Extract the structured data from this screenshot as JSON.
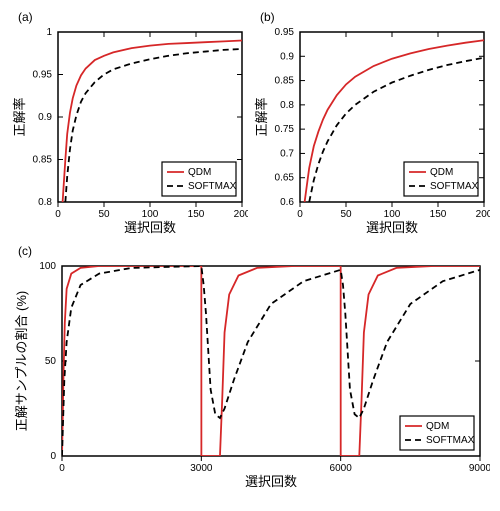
{
  "panel_a": {
    "label": "(a)",
    "type": "line",
    "xlim": [
      0,
      200
    ],
    "xticks": [
      0,
      50,
      100,
      150,
      200
    ],
    "ylim": [
      0.8,
      1.0
    ],
    "yticks": [
      0.8,
      0.85,
      0.9,
      0.95,
      1.0
    ],
    "yticklabels": [
      "0.8",
      "0.85",
      "0.9",
      "0.95",
      "1"
    ],
    "xlabel": "選択回数",
    "ylabel": "正解率",
    "label_fontsize": 13,
    "tick_fontsize": 10,
    "series": [
      {
        "name": "QDM",
        "color": "#d62728",
        "dash": "solid",
        "x": [
          5,
          8,
          10,
          13,
          16,
          20,
          25,
          30,
          40,
          50,
          60,
          80,
          100,
          120,
          140,
          160,
          180,
          200
        ],
        "y": [
          0.8,
          0.85,
          0.88,
          0.905,
          0.922,
          0.937,
          0.949,
          0.957,
          0.967,
          0.972,
          0.976,
          0.981,
          0.984,
          0.986,
          0.987,
          0.988,
          0.989,
          0.99
        ]
      },
      {
        "name": "SOFTMAX",
        "color": "#000000",
        "dash": "dashed",
        "x": [
          8,
          10,
          13,
          16,
          20,
          25,
          30,
          40,
          50,
          60,
          80,
          100,
          120,
          140,
          160,
          180,
          200
        ],
        "y": [
          0.8,
          0.83,
          0.862,
          0.884,
          0.902,
          0.918,
          0.928,
          0.941,
          0.95,
          0.956,
          0.963,
          0.968,
          0.972,
          0.975,
          0.977,
          0.979,
          0.98
        ]
      }
    ],
    "legend": {
      "items": [
        "QDM",
        "SOFTMAX"
      ],
      "pos": "lower-right"
    }
  },
  "panel_b": {
    "label": "(b)",
    "type": "line",
    "xlim": [
      0,
      200
    ],
    "xticks": [
      0,
      50,
      100,
      150,
      200
    ],
    "ylim": [
      0.6,
      0.95
    ],
    "yticks": [
      0.6,
      0.65,
      0.7,
      0.75,
      0.8,
      0.85,
      0.9,
      0.95
    ],
    "yticklabels": [
      "0.6",
      "0.65",
      "0.7",
      "0.75",
      "0.8",
      "0.85",
      "0.9",
      "0.95"
    ],
    "xlabel": "選択回数",
    "ylabel": "正解率",
    "label_fontsize": 13,
    "tick_fontsize": 10,
    "series": [
      {
        "name": "QDM",
        "color": "#d62728",
        "dash": "solid",
        "x": [
          5,
          10,
          15,
          20,
          25,
          30,
          40,
          50,
          60,
          80,
          100,
          120,
          140,
          160,
          180,
          200
        ],
        "y": [
          0.6,
          0.67,
          0.715,
          0.745,
          0.77,
          0.79,
          0.82,
          0.842,
          0.858,
          0.88,
          0.895,
          0.906,
          0.915,
          0.922,
          0.928,
          0.933
        ]
      },
      {
        "name": "SOFTMAX",
        "color": "#000000",
        "dash": "dashed",
        "x": [
          10,
          15,
          20,
          25,
          30,
          40,
          50,
          60,
          80,
          100,
          120,
          140,
          160,
          180,
          200
        ],
        "y": [
          0.6,
          0.645,
          0.678,
          0.704,
          0.725,
          0.758,
          0.782,
          0.8,
          0.827,
          0.846,
          0.86,
          0.872,
          0.882,
          0.89,
          0.897
        ]
      }
    ],
    "legend": {
      "items": [
        "QDM",
        "SOFTMAX"
      ],
      "pos": "lower-right"
    }
  },
  "panel_c": {
    "label": "(c)",
    "type": "line",
    "xlim": [
      0,
      9000
    ],
    "xticks": [
      0,
      3000,
      6000,
      9000
    ],
    "ylim": [
      0,
      100
    ],
    "yticks": [
      0,
      50,
      100
    ],
    "xlabel": "選択回数",
    "ylabel": "正解サンプルの割合 (%)",
    "label_fontsize": 13,
    "tick_fontsize": 10,
    "series": [
      {
        "name": "QDM",
        "color": "#d62728",
        "dash": "solid",
        "x": [
          0,
          30,
          60,
          100,
          200,
          400,
          800,
          2000,
          3000,
          3001,
          3200,
          3400,
          3401,
          3450,
          3500,
          3600,
          3800,
          4200,
          5000,
          6000,
          6001,
          6200,
          6400,
          6401,
          6450,
          6500,
          6600,
          6800,
          7200,
          8000,
          9000
        ],
        "y": [
          0,
          40,
          70,
          88,
          96,
          99,
          100,
          100,
          100,
          0,
          0,
          0,
          0,
          30,
          65,
          85,
          95,
          99,
          100,
          100,
          0,
          0,
          0,
          0,
          30,
          65,
          85,
          95,
          99,
          100,
          100
        ]
      },
      {
        "name": "SOFTMAX",
        "color": "#000000",
        "dash": "dashed",
        "x": [
          0,
          50,
          100,
          200,
          400,
          800,
          1500,
          3000,
          3050,
          3100,
          3150,
          3200,
          3300,
          3400,
          3500,
          3700,
          4000,
          4500,
          5200,
          6000,
          6050,
          6100,
          6150,
          6200,
          6300,
          6400,
          6500,
          6700,
          7000,
          7500,
          8200,
          9000
        ],
        "y": [
          0,
          40,
          60,
          78,
          90,
          96,
          99,
          100,
          90,
          75,
          55,
          35,
          22,
          20,
          25,
          40,
          60,
          80,
          92,
          98,
          90,
          75,
          55,
          35,
          22,
          20,
          25,
          40,
          60,
          80,
          92,
          98
        ]
      }
    ],
    "legend": {
      "items": [
        "QDM",
        "SOFTMAX"
      ],
      "pos": "lower-right"
    }
  },
  "colors": {
    "qdm": "#d62728",
    "softmax": "#000000",
    "axis": "#000000",
    "bg": "#ffffff"
  }
}
